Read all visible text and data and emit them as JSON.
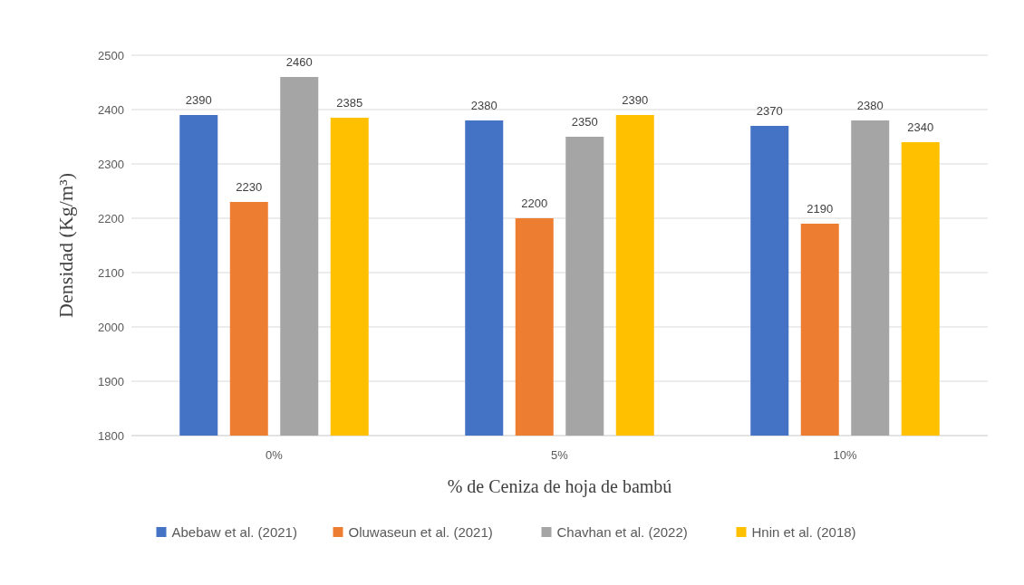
{
  "chart_data": {
    "type": "bar",
    "xlabel": "% de Ceniza de hoja de bambú",
    "ylabel": "Densidad (Kg/m³)",
    "categories": [
      "0%",
      "5%",
      "10%"
    ],
    "series": [
      {
        "name": "Abebaw et al. (2021)",
        "color": "#4472c4",
        "values": [
          2390,
          2380,
          2370
        ]
      },
      {
        "name": "Oluwaseun et al. (2021)",
        "color": "#ed7d31",
        "values": [
          2230,
          2200,
          2190
        ]
      },
      {
        "name": "Chavhan et al. (2022)",
        "color": "#a5a5a5",
        "values": [
          2460,
          2350,
          2380
        ]
      },
      {
        "name": "Hnin et al. (2018)",
        "color": "#ffc000",
        "values": [
          2385,
          2390,
          2340
        ]
      }
    ],
    "ylim": [
      1800,
      2500
    ],
    "yticks": [
      1800,
      1900,
      2000,
      2100,
      2200,
      2300,
      2400,
      2500
    ],
    "grid": "y",
    "legend": "bottom",
    "data_labels": true
  }
}
